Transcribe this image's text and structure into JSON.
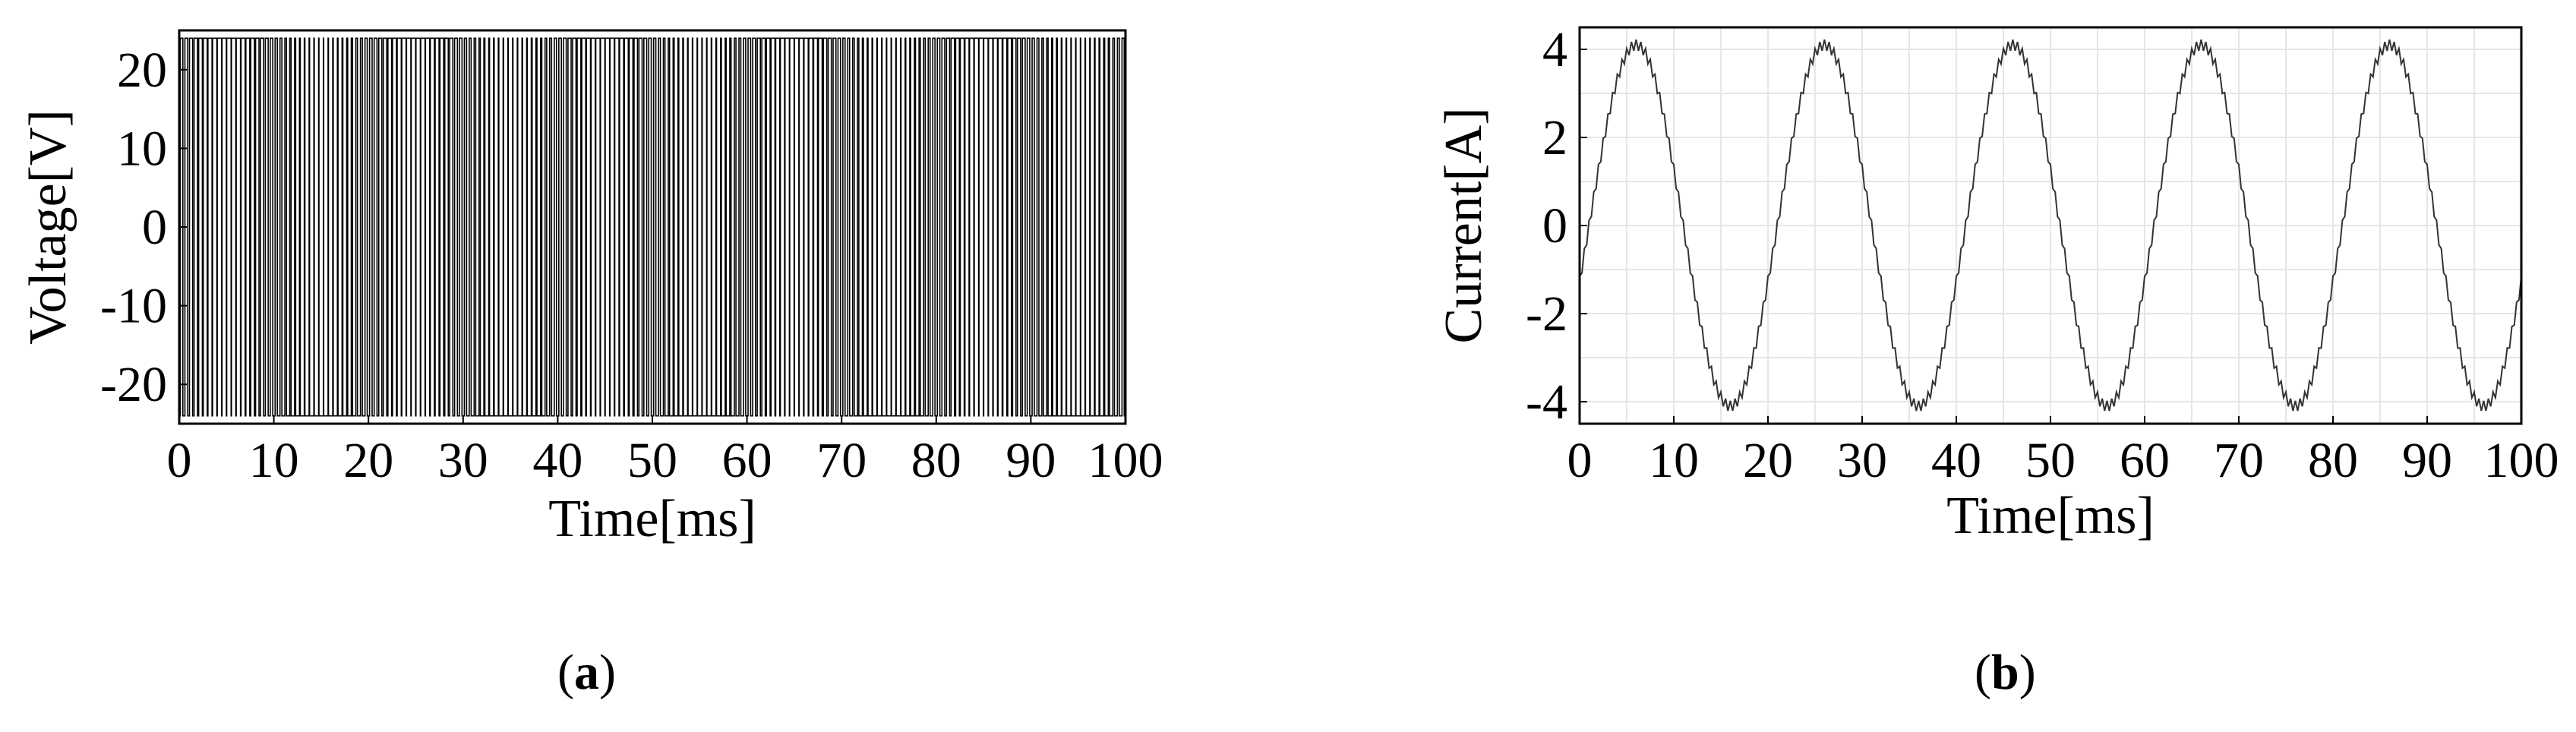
{
  "charts": [
    {
      "id": "a",
      "type": "line",
      "panel_label": "a",
      "xlabel": "Time[ms]",
      "ylabel": "Voltage[V]",
      "xlim": [
        0,
        100
      ],
      "ylim": [
        -25,
        25
      ],
      "xticks": [
        0,
        10,
        20,
        30,
        40,
        50,
        60,
        70,
        80,
        90,
        100
      ],
      "yticks": [
        -20,
        -10,
        0,
        10,
        20
      ],
      "grid": false,
      "signal": {
        "kind": "pwm",
        "high": 24,
        "low": -24,
        "carrier_period_ms": 0.5,
        "modulation_period_ms": 20,
        "modulation_index": 0.85
      }
    },
    {
      "id": "b",
      "type": "line",
      "panel_label": "b",
      "xlabel": "Time[ms]",
      "ylabel": "Current[A]",
      "xlim": [
        0,
        100
      ],
      "ylim": [
        -4.5,
        4.5
      ],
      "xticks": [
        0,
        10,
        20,
        30,
        40,
        50,
        60,
        70,
        80,
        90,
        100
      ],
      "yticks": [
        -4,
        -2,
        0,
        2,
        4
      ],
      "grid": true,
      "signal": {
        "kind": "sine_with_ripple",
        "amplitude": 4.1,
        "period_ms": 20,
        "phase_deg": -18,
        "ripple_amplitude": 0.12,
        "ripple_period_ms": 0.5
      }
    }
  ]
}
